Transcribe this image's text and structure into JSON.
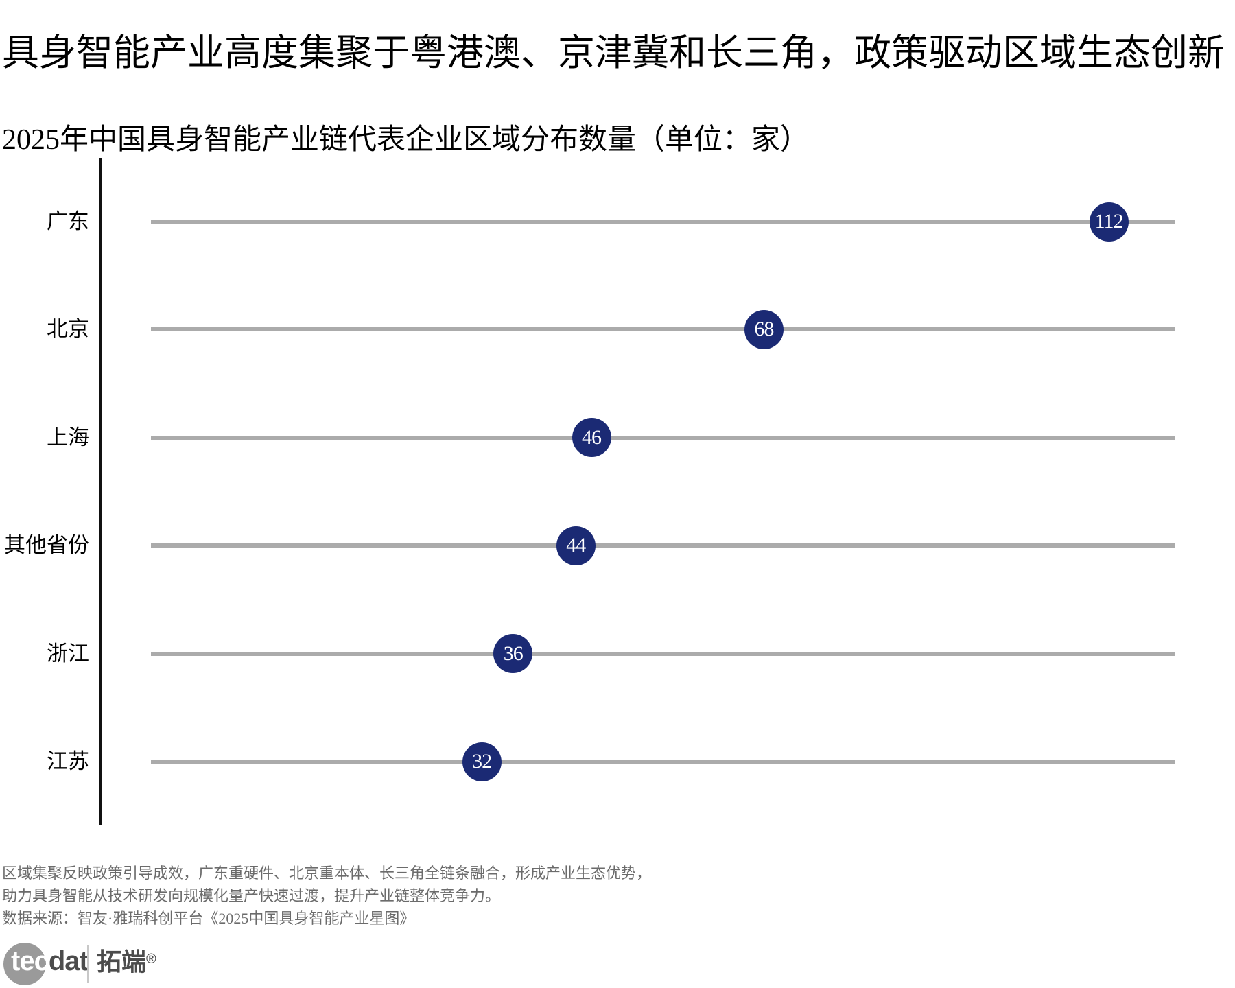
{
  "page": {
    "title": "具身智能产业高度集聚于粤港澳、京津冀和长三角，政策驱动区域生态创新",
    "subtitle": "2025年中国具身智能产业链代表企业区域分布数量（单位：家）"
  },
  "chart_data": {
    "type": "scatter",
    "variant": "horizontal-dot-plot",
    "title": "2025年中国具身智能产业链代表企业区域分布数量（单位：家）",
    "categories": [
      "广东",
      "北京",
      "上海",
      "其他省份",
      "浙江",
      "江苏"
    ],
    "values": [
      112,
      68,
      46,
      44,
      36,
      32
    ],
    "xlim": [
      -10.2,
      120.4
    ],
    "grid": "full-width horizontal gray lines, no x-axis ticks",
    "legend": "none",
    "dot_color": "#1b2a74",
    "dot_label_color": "#ffffff",
    "line_color": "#ababab",
    "axis_color": "#111111"
  },
  "footer": {
    "note_line1": "区域集聚反映政策引导成效，广东重硬件、北京重本体、长三角全链条融合，形成产业生态优势，",
    "note_line2": "助力具身智能从技术研发向规模化量产快速过渡，提升产业链整体竞争力。",
    "source": "数据来源：智友·雅瑞科创平台《2025中国具身智能产业星图》"
  },
  "logo": {
    "tec": "tec",
    "dat": "dat",
    "cn": "拓端",
    "reg": "®"
  }
}
